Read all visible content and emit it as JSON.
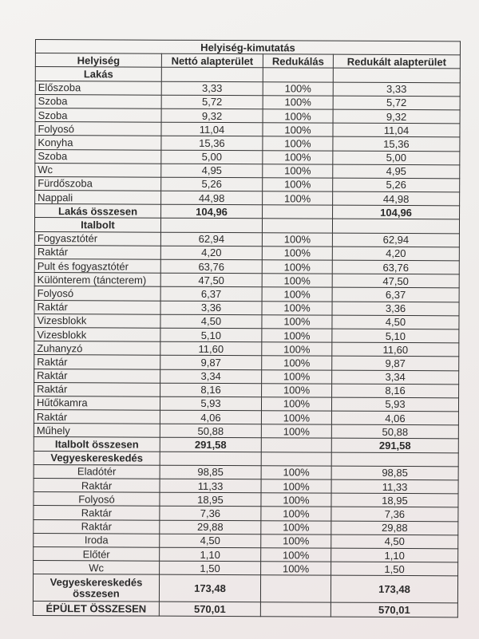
{
  "title": "Helyiség-kimutatás",
  "headers": [
    "Helyiség",
    "Nettó alapterület",
    "Redukálás",
    "Redukált alapterület"
  ],
  "sections": [
    {
      "name": "Lakás",
      "align": "left",
      "rows": [
        [
          "Előszoba",
          "3,33",
          "100%",
          "3,33"
        ],
        [
          "Szoba",
          "5,72",
          "100%",
          "5,72"
        ],
        [
          "Szoba",
          "9,32",
          "100%",
          "9,32"
        ],
        [
          "Folyosó",
          "11,04",
          "100%",
          "11,04"
        ],
        [
          "Konyha",
          "15,36",
          "100%",
          "15,36"
        ],
        [
          "Szoba",
          "5,00",
          "100%",
          "5,00"
        ],
        [
          "Wc",
          "4,95",
          "100%",
          "4,95"
        ],
        [
          "Fürdőszoba",
          "5,26",
          "100%",
          "5,26"
        ],
        [
          "Nappali",
          "44,98",
          "100%",
          "44,98"
        ]
      ],
      "total": [
        "Lakás összesen",
        "104,96",
        "",
        "104,96"
      ]
    },
    {
      "name": "Italbolt",
      "align": "left",
      "rows": [
        [
          "Fogyasztótér",
          "62,94",
          "100%",
          "62,94"
        ],
        [
          "Raktár",
          "4,20",
          "100%",
          "4,20"
        ],
        [
          "Pult és fogyasztótér",
          "63,76",
          "100%",
          "63,76"
        ],
        [
          "Különterem (táncterem)",
          "47,50",
          "100%",
          "47,50"
        ],
        [
          "Folyosó",
          "6,37",
          "100%",
          "6,37"
        ],
        [
          "Raktár",
          "3,36",
          "100%",
          "3,36"
        ],
        [
          "Vizesblokk",
          "4,50",
          "100%",
          "4,50"
        ],
        [
          "Vizesblokk",
          "5,10",
          "100%",
          "5,10"
        ],
        [
          "Zuhanyzó",
          "11,60",
          "100%",
          "11,60"
        ],
        [
          "Raktár",
          "9,87",
          "100%",
          "9,87"
        ],
        [
          "Raktár",
          "3,34",
          "100%",
          "3,34"
        ],
        [
          "Raktár",
          "8,16",
          "100%",
          "8,16"
        ],
        [
          "Hűtőkamra",
          "5,93",
          "100%",
          "5,93"
        ],
        [
          "Raktár",
          "4,06",
          "100%",
          "4,06"
        ],
        [
          "Műhely",
          "50,88",
          "100%",
          "50,88"
        ]
      ],
      "total": [
        "Italbolt összesen",
        "291,58",
        "",
        "291,58"
      ]
    },
    {
      "name": "Vegyeskereskedés",
      "align": "center",
      "rows": [
        [
          "Eladótér",
          "98,85",
          "100%",
          "98,85"
        ],
        [
          "Raktár",
          "11,33",
          "100%",
          "11,33"
        ],
        [
          "Folyosó",
          "18,95",
          "100%",
          "18,95"
        ],
        [
          "Raktár",
          "7,36",
          "100%",
          "7,36"
        ],
        [
          "Raktár",
          "29,88",
          "100%",
          "29,88"
        ],
        [
          "Iroda",
          "4,50",
          "100%",
          "4,50"
        ],
        [
          "Előtér",
          "1,10",
          "100%",
          "1,10"
        ],
        [
          "Wc",
          "1,50",
          "100%",
          "1,50"
        ]
      ],
      "total": [
        "Vegyeskereskedés összesen",
        "173,48",
        "",
        "173,48"
      ]
    }
  ],
  "grand_total": [
    "ÉPÜLET ÖSSZESEN",
    "570,01",
    "",
    "570,01"
  ]
}
